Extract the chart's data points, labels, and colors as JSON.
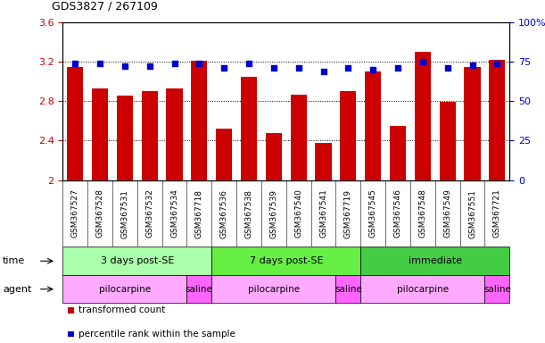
{
  "title": "GDS3827 / 267109",
  "samples": [
    "GSM367527",
    "GSM367528",
    "GSM367531",
    "GSM367532",
    "GSM367534",
    "GSM367718",
    "GSM367536",
    "GSM367538",
    "GSM367539",
    "GSM367540",
    "GSM367541",
    "GSM367719",
    "GSM367545",
    "GSM367546",
    "GSM367548",
    "GSM367549",
    "GSM367551",
    "GSM367721"
  ],
  "bar_values": [
    3.15,
    2.93,
    2.86,
    2.9,
    2.93,
    3.21,
    2.52,
    3.05,
    2.48,
    2.87,
    2.38,
    2.9,
    3.1,
    2.55,
    3.3,
    2.79,
    3.15,
    3.22
  ],
  "percentile_values": [
    74,
    74,
    72,
    72,
    74,
    74,
    71,
    74,
    71,
    71,
    69,
    71,
    70,
    71,
    75,
    71,
    73,
    74
  ],
  "ylim_left": [
    2.0,
    3.6
  ],
  "ylim_right": [
    0,
    100
  ],
  "yticks_left": [
    2.0,
    2.4,
    2.8,
    3.2,
    3.6
  ],
  "yticks_right": [
    0,
    25,
    50,
    75,
    100
  ],
  "ytick_labels_left": [
    "2",
    "2.4",
    "2.8",
    "3.2",
    "3.6"
  ],
  "ytick_labels_right": [
    "0",
    "25",
    "50",
    "75",
    "100%"
  ],
  "bar_color": "#CC0000",
  "dot_color": "#0000CC",
  "time_groups": [
    {
      "label": "3 days post-SE",
      "start": 0,
      "end": 5,
      "color": "#AAFFAA"
    },
    {
      "label": "7 days post-SE",
      "start": 6,
      "end": 11,
      "color": "#66EE44"
    },
    {
      "label": "immediate",
      "start": 12,
      "end": 17,
      "color": "#44CC44"
    }
  ],
  "agent_groups": [
    {
      "label": "pilocarpine",
      "start": 0,
      "end": 4,
      "color": "#FFAAFF"
    },
    {
      "label": "saline",
      "start": 5,
      "end": 5,
      "color": "#FF66FF"
    },
    {
      "label": "pilocarpine",
      "start": 6,
      "end": 10,
      "color": "#FFAAFF"
    },
    {
      "label": "saline",
      "start": 11,
      "end": 11,
      "color": "#FF66FF"
    },
    {
      "label": "pilocarpine",
      "start": 12,
      "end": 16,
      "color": "#FFAAFF"
    },
    {
      "label": "saline",
      "start": 17,
      "end": 17,
      "color": "#FF66FF"
    }
  ],
  "legend_items": [
    {
      "label": "transformed count",
      "color": "#CC0000"
    },
    {
      "label": "percentile rank within the sample",
      "color": "#0000CC"
    }
  ],
  "time_label": "time",
  "agent_label": "agent",
  "bg_color": "#FFFFFF",
  "tick_label_color_left": "#CC0000",
  "tick_label_color_right": "#0000CC",
  "sample_bg_color": "#DDDDDD"
}
